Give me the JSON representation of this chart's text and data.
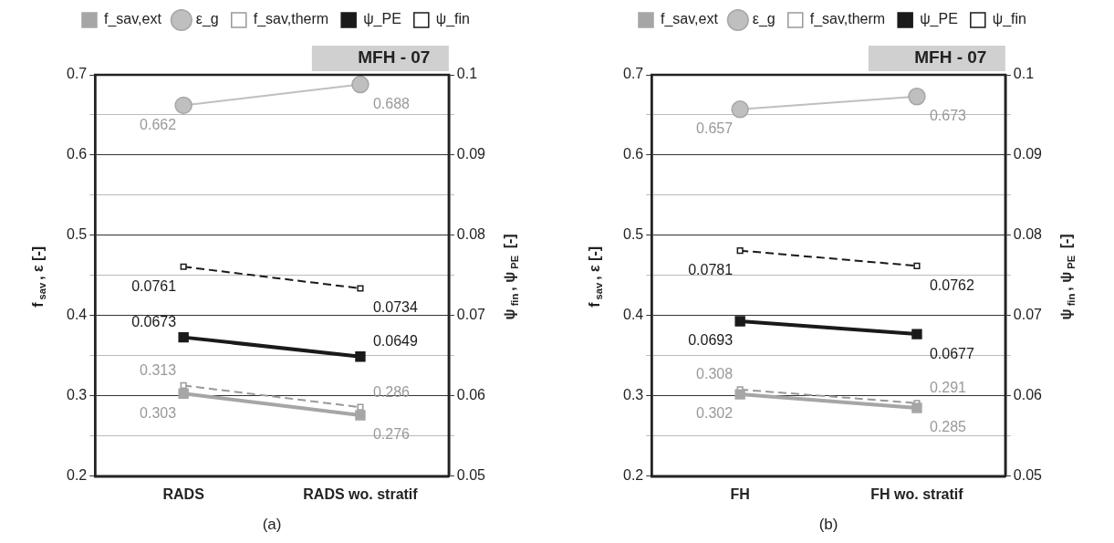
{
  "chart_data": [
    {
      "type": "line",
      "categories": [
        "RADS",
        "RADS wo. stratif"
      ],
      "ylabel": "f$_{sav}$, ε [-]",
      "y2label": "ψ$_{fin}$, ψ$_{PE}$ [-]",
      "annotations": [
        "MFH - 07",
        "(a)"
      ],
      "ylim": [
        0.2,
        0.7
      ],
      "yticks": [
        0.2,
        {
          "value": 0.25,
          "label": null
        },
        0.3,
        {
          "value": 0.35,
          "label": null
        },
        0.4,
        {
          "value": 0.45,
          "label": null
        },
        0.5,
        {
          "value": 0.55,
          "label": null
        },
        0.6,
        {
          "value": 0.65,
          "label": null
        },
        0.7
      ],
      "y2lim": [
        0.05,
        0.1
      ],
      "y2ticks": [
        0.05,
        {
          "value": 0.055,
          "label": null
        },
        0.06,
        {
          "value": 0.065,
          "label": null
        },
        0.07,
        {
          "value": 0.075,
          "label": null
        },
        0.08,
        {
          "value": 0.085,
          "label": null
        },
        0.09,
        {
          "value": 0.095,
          "label": null
        },
        0.1
      ],
      "grid": "y",
      "legend": "top",
      "data_labels": true,
      "series": [
        {
          "name": "f_sav,ext",
          "color": "#a6a6a6",
          "marker": "square",
          "line_style": "solid",
          "values": [
            0.303,
            0.276
          ]
        },
        {
          "name": "ε_g",
          "color": "#bfbfbf",
          "marker": "circle",
          "line_style": "solid",
          "values": [
            0.662,
            0.688
          ]
        },
        {
          "name": "f_sav,therm",
          "color": "#999999",
          "marker": "square",
          "line_style": "dashed",
          "values": [
            0.313,
            0.286
          ]
        },
        {
          "name": "ψ_PE",
          "color": "#1a1a1a",
          "marker": "square",
          "line_style": "solid",
          "axis": "y2",
          "values": [
            0.0673,
            0.0649
          ]
        },
        {
          "name": "ψ_fin",
          "color": "#1a1a1a",
          "marker": "square",
          "line_style": "dashed",
          "axis": "y2",
          "values": [
            0.0761,
            0.0734
          ]
        }
      ]
    },
    {
      "type": "line",
      "categories": [
        "FH",
        "FH wo. stratif"
      ],
      "ylabel": "f$_{sav}$, ε [-]",
      "y2label": "ψ$_{fin}$, ψ$_{PE}$ [-]",
      "annotations": [
        "MFH - 07",
        "(b)"
      ],
      "ylim": [
        0.2,
        0.7
      ],
      "yticks": [
        0.2,
        {
          "value": 0.25,
          "label": null
        },
        0.3,
        {
          "value": 0.35,
          "label": null
        },
        0.4,
        {
          "value": 0.45,
          "label": null
        },
        0.5,
        {
          "value": 0.55,
          "label": null
        },
        0.6,
        {
          "value": 0.65,
          "label": null
        },
        0.7
      ],
      "y2lim": [
        0.05,
        0.1
      ],
      "y2ticks": [
        0.05,
        {
          "value": 0.055,
          "label": null
        },
        0.06,
        {
          "value": 0.065,
          "label": null
        },
        0.07,
        {
          "value": 0.075,
          "label": null
        },
        0.08,
        {
          "value": 0.085,
          "label": null
        },
        0.09,
        {
          "value": 0.095,
          "label": null
        },
        0.1
      ],
      "grid": "y",
      "legend": "top",
      "data_labels": true,
      "series": [
        {
          "name": "f_sav,ext",
          "color": "#a6a6a6",
          "marker": "square",
          "line_style": "solid",
          "values": [
            0.302,
            0.285
          ]
        },
        {
          "name": "ε_g",
          "color": "#bfbfbf",
          "marker": "circle",
          "line_style": "solid",
          "values": [
            0.657,
            0.673
          ]
        },
        {
          "name": "f_sav,therm",
          "color": "#999999",
          "marker": "square",
          "line_style": "dashed",
          "values": [
            0.308,
            0.291
          ]
        },
        {
          "name": "ψ_PE",
          "color": "#1a1a1a",
          "marker": "square",
          "line_style": "solid",
          "axis": "y2",
          "values": [
            0.0693,
            0.0677
          ]
        },
        {
          "name": "ψ_fin",
          "color": "#1a1a1a",
          "marker": "square",
          "line_style": "dashed",
          "axis": "y2",
          "values": [
            0.0781,
            0.0762
          ]
        }
      ]
    }
  ]
}
